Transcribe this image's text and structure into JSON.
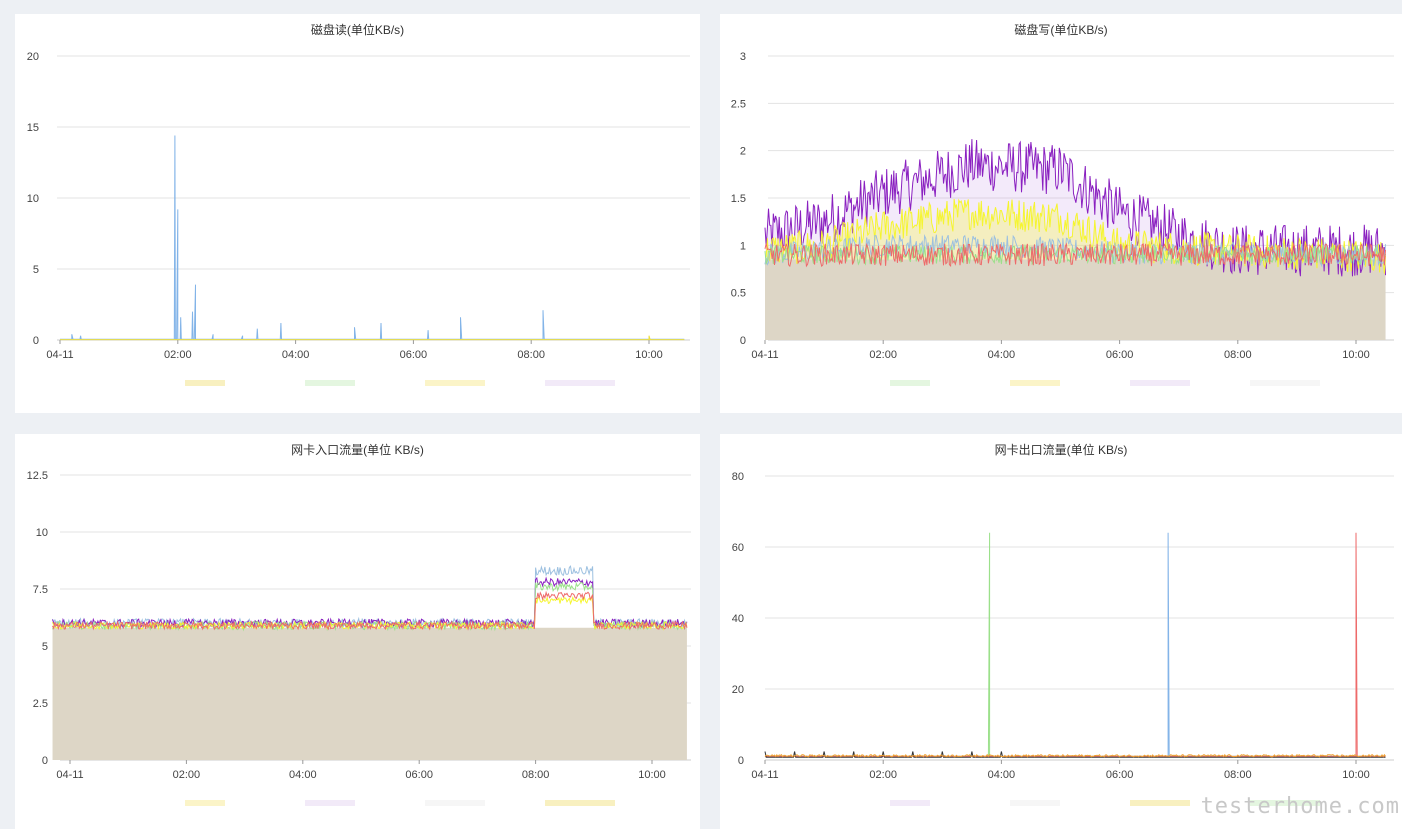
{
  "watermark": "testerhome.com",
  "chart_data": [
    {
      "type": "area",
      "title": "磁盘读(单位KB/s)",
      "ylim": [
        0,
        20
      ],
      "yticks": [
        "0",
        "5",
        "10",
        "15",
        "20"
      ],
      "xticks": [
        "04-11",
        "02:00",
        "04:00",
        "06:00",
        "08:00",
        "10:00"
      ],
      "x_hours": [
        0,
        2,
        4,
        6,
        8,
        10
      ],
      "x_range_hours": [
        0,
        10.6
      ],
      "baseline": 0,
      "series": [
        {
          "color": "#83b4e8",
          "level": 0.05,
          "spikes": [
            [
              0.2,
              0.4
            ],
            [
              0.35,
              0.3
            ],
            [
              1.95,
              14.4
            ],
            [
              2.0,
              9.2
            ],
            [
              2.05,
              1.6
            ],
            [
              2.25,
              2.0
            ],
            [
              2.3,
              3.9
            ],
            [
              2.6,
              0.4
            ],
            [
              3.1,
              0.3
            ],
            [
              3.35,
              0.8
            ],
            [
              3.75,
              1.2
            ],
            [
              5.0,
              0.9
            ],
            [
              5.45,
              1.2
            ],
            [
              6.25,
              0.7
            ],
            [
              6.8,
              1.6
            ],
            [
              8.2,
              2.1
            ]
          ]
        },
        {
          "color": "#f0e040",
          "level": 0.03,
          "spikes": [
            [
              10.0,
              0.3
            ]
          ]
        }
      ],
      "gridline": "#e3e3e3"
    },
    {
      "type": "area",
      "title": "磁盘写(单位KB/s)",
      "ylim": [
        0,
        3
      ],
      "yticks": [
        "0",
        "0.5",
        "1",
        "1.5",
        "2",
        "2.5",
        "3"
      ],
      "xticks": [
        "04-11",
        "02:00",
        "04:00",
        "06:00",
        "08:00",
        "10:00"
      ],
      "x_hours": [
        0,
        2,
        4,
        6,
        8,
        10
      ],
      "x_range_hours": [
        0,
        10.5
      ],
      "fill_base": 0.85,
      "fill_color": "#ddd6c6",
      "series": [
        {
          "color": "#8a20c0",
          "profile": [
            [
              0,
              1.1
            ],
            [
              1,
              1.25
            ],
            [
              2,
              1.55
            ],
            [
              3.5,
              1.85
            ],
            [
              5,
              1.8
            ],
            [
              6,
              1.35
            ],
            [
              7,
              1.1
            ],
            [
              8,
              0.95
            ],
            [
              10.5,
              0.95
            ]
          ],
          "noise": 0.28
        },
        {
          "color": "#f5f530",
          "profile": [
            [
              0,
              0.95
            ],
            [
              1,
              1.0
            ],
            [
              2,
              1.2
            ],
            [
              3.5,
              1.35
            ],
            [
              5,
              1.3
            ],
            [
              6,
              1.0
            ],
            [
              10.5,
              0.88
            ]
          ],
          "noise": 0.18
        },
        {
          "color": "#9cc0e0",
          "profile": [
            [
              0,
              0.9
            ],
            [
              2,
              1.0
            ],
            [
              4,
              1.0
            ],
            [
              6,
              0.92
            ],
            [
              10.5,
              0.9
            ]
          ],
          "noise": 0.12
        },
        {
          "color": "#9be08a",
          "profile": [
            [
              0,
              0.9
            ],
            [
              10.5,
              0.9
            ]
          ],
          "noise": 0.1
        },
        {
          "color": "#ee6a6a",
          "profile": [
            [
              0,
              0.9
            ],
            [
              10.5,
              0.9
            ]
          ],
          "noise": 0.12
        }
      ],
      "gridline": "#e3e3e3"
    },
    {
      "type": "area",
      "title": "网卡入口流量(单位 KB/s)",
      "ylim": [
        0,
        12.5
      ],
      "yticks": [
        "0",
        "2.5",
        "5",
        "7.5",
        "10",
        "12.5"
      ],
      "xticks": [
        "04-11",
        "02:00",
        "04:00",
        "06:00",
        "08:00",
        "10:00"
      ],
      "x_hours": [
        0,
        2,
        4,
        6,
        8,
        10
      ],
      "x_range_hours": [
        -0.3,
        10.6
      ],
      "fill_base": 5.8,
      "fill_color": "#ddd6c6",
      "series": [
        {
          "color": "#9cc0e0",
          "profile": [
            [
              0,
              6.0
            ],
            [
              7.98,
              6.0
            ],
            [
              8.0,
              8.3
            ],
            [
              8.98,
              8.3
            ],
            [
              9.0,
              6.0
            ],
            [
              10.6,
              6.0
            ]
          ],
          "noise": 0.2
        },
        {
          "color": "#8a20c0",
          "profile": [
            [
              0,
              6.0
            ],
            [
              7.98,
              6.0
            ],
            [
              8.0,
              7.8
            ],
            [
              8.98,
              7.8
            ],
            [
              9.0,
              6.0
            ],
            [
              10.6,
              6.0
            ]
          ],
          "noise": 0.18
        },
        {
          "color": "#9be08a",
          "profile": [
            [
              0,
              5.9
            ],
            [
              7.98,
              5.9
            ],
            [
              8.0,
              7.6
            ],
            [
              8.98,
              7.6
            ],
            [
              9.0,
              5.9
            ],
            [
              10.6,
              5.9
            ]
          ],
          "noise": 0.18
        },
        {
          "color": "#f5f530",
          "profile": [
            [
              0,
              5.9
            ],
            [
              7.98,
              5.9
            ],
            [
              8.0,
              7.0
            ],
            [
              8.98,
              7.0
            ],
            [
              9.0,
              5.9
            ],
            [
              10.6,
              5.9
            ]
          ],
          "noise": 0.15
        },
        {
          "color": "#ee6a6a",
          "profile": [
            [
              0,
              5.9
            ],
            [
              7.98,
              5.9
            ],
            [
              8.0,
              7.2
            ],
            [
              8.98,
              7.2
            ],
            [
              9.0,
              5.9
            ],
            [
              10.6,
              5.9
            ]
          ],
          "noise": 0.16
        }
      ],
      "gridline": "#e3e3e3"
    },
    {
      "type": "line",
      "title": "网卡出口流量(单位 KB/s)",
      "ylim": [
        0,
        80
      ],
      "yticks": [
        "0",
        "20",
        "40",
        "60",
        "80"
      ],
      "xticks": [
        "04-11",
        "02:00",
        "04:00",
        "06:00",
        "08:00",
        "10:00"
      ],
      "x_hours": [
        0,
        2,
        4,
        6,
        8,
        10
      ],
      "x_range_hours": [
        0,
        10.5
      ],
      "series": [
        {
          "color": "#9be08a",
          "level": 1.0,
          "spikes": [
            [
              3.8,
              64
            ]
          ]
        },
        {
          "color": "#83b4e8",
          "level": 1.0,
          "spikes": [
            [
              6.82,
              64
            ]
          ]
        },
        {
          "color": "#ee6a6a",
          "level": 1.0,
          "spikes": [
            [
              10.0,
              64
            ]
          ]
        },
        {
          "color": "#333333",
          "level": 0.8,
          "ticks_every": 0.5,
          "tick_height": 2.4
        },
        {
          "color": "#f0a030",
          "level": 1.2,
          "noise": 0.3
        }
      ],
      "gridline": "#e3e3e3"
    }
  ]
}
